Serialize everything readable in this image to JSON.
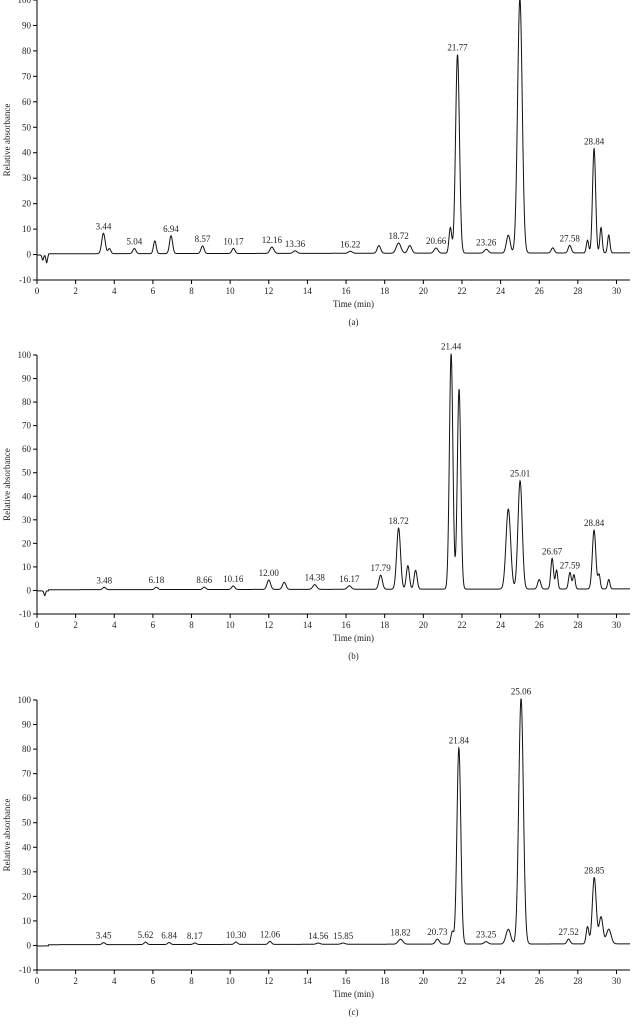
{
  "chart_data": [
    {
      "type": "line",
      "panel_label": "(a)",
      "xlabel": "Time (min)",
      "ylabel": "Relative absorbance",
      "xlim": [
        0,
        30.7
      ],
      "ylim": [
        -10,
        100
      ],
      "x_ticks": [
        "0",
        "2",
        "4",
        "6",
        "8",
        "10",
        "12",
        "14",
        "16",
        "18",
        "20",
        "22",
        "24",
        "26",
        "28",
        "30"
      ],
      "y_ticks": [
        "-10",
        "0",
        "10",
        "20",
        "30",
        "40",
        "50",
        "60",
        "70",
        "80",
        "90",
        "100"
      ],
      "peak_labels": [
        "3.44",
        "5.04",
        "6.94",
        "8.57",
        "10.17",
        "12.16",
        "13.36",
        "16.22",
        "18.72",
        "20.66",
        "21.77",
        "23.26",
        "27.58",
        "28.84"
      ],
      "peaks": [
        {
          "t": 0.3,
          "h": -2,
          "w": 0.04
        },
        {
          "t": 0.5,
          "h": -3,
          "w": 0.04
        },
        {
          "t": 3.44,
          "h": 8,
          "w": 0.09
        },
        {
          "t": 3.75,
          "h": 2,
          "w": 0.07
        },
        {
          "t": 5.04,
          "h": 2,
          "w": 0.08
        },
        {
          "t": 6.1,
          "h": 5,
          "w": 0.07
        },
        {
          "t": 6.94,
          "h": 7,
          "w": 0.08
        },
        {
          "t": 8.57,
          "h": 3,
          "w": 0.08
        },
        {
          "t": 10.17,
          "h": 2,
          "w": 0.08
        },
        {
          "t": 12.16,
          "h": 2.5,
          "w": 0.1
        },
        {
          "t": 13.36,
          "h": 1,
          "w": 0.1
        },
        {
          "t": 16.22,
          "h": 0.8,
          "w": 0.1
        },
        {
          "t": 17.7,
          "h": 3,
          "w": 0.09
        },
        {
          "t": 18.72,
          "h": 4,
          "w": 0.12
        },
        {
          "t": 19.3,
          "h": 3,
          "w": 0.1
        },
        {
          "t": 20.66,
          "h": 2,
          "w": 0.1
        },
        {
          "t": 21.4,
          "h": 10,
          "w": 0.07
        },
        {
          "t": 21.77,
          "h": 78,
          "w": 0.1
        },
        {
          "t": 23.26,
          "h": 1.5,
          "w": 0.1
        },
        {
          "t": 24.4,
          "h": 7,
          "w": 0.1
        },
        {
          "t": 25.0,
          "h": 100,
          "w": 0.12
        },
        {
          "t": 26.7,
          "h": 2,
          "w": 0.08
        },
        {
          "t": 27.58,
          "h": 3,
          "w": 0.08
        },
        {
          "t": 28.5,
          "h": 5,
          "w": 0.06
        },
        {
          "t": 28.84,
          "h": 41,
          "w": 0.08
        },
        {
          "t": 29.2,
          "h": 10,
          "w": 0.06
        },
        {
          "t": 29.6,
          "h": 7,
          "w": 0.06
        }
      ]
    },
    {
      "type": "line",
      "panel_label": "(b)",
      "xlabel": "Time (min)",
      "ylabel": "Relative absorbance",
      "xlim": [
        0,
        30.7
      ],
      "ylim": [
        -10,
        100
      ],
      "x_ticks": [
        "0",
        "2",
        "4",
        "6",
        "8",
        "10",
        "12",
        "14",
        "16",
        "18",
        "20",
        "22",
        "24",
        "26",
        "28",
        "30"
      ],
      "y_ticks": [
        "-10",
        "0",
        "10",
        "20",
        "30",
        "40",
        "50",
        "60",
        "70",
        "80",
        "90",
        "100"
      ],
      "peak_labels": [
        "3.48",
        "6.18",
        "8.66",
        "10.16",
        "12.00",
        "14.38",
        "16.17",
        "17.79",
        "18.72",
        "21.44",
        "25.01",
        "26.67",
        "27.59",
        "28.84"
      ],
      "peaks": [
        {
          "t": 0.4,
          "h": -2,
          "w": 0.04
        },
        {
          "t": 3.48,
          "h": 1,
          "w": 0.08
        },
        {
          "t": 6.18,
          "h": 1,
          "w": 0.08
        },
        {
          "t": 8.66,
          "h": 1,
          "w": 0.08
        },
        {
          "t": 10.16,
          "h": 1.5,
          "w": 0.08
        },
        {
          "t": 12.0,
          "h": 4,
          "w": 0.09
        },
        {
          "t": 12.8,
          "h": 3,
          "w": 0.09
        },
        {
          "t": 14.38,
          "h": 2,
          "w": 0.1
        },
        {
          "t": 16.17,
          "h": 1.5,
          "w": 0.1
        },
        {
          "t": 17.79,
          "h": 6,
          "w": 0.09
        },
        {
          "t": 18.72,
          "h": 26,
          "w": 0.1
        },
        {
          "t": 19.2,
          "h": 10,
          "w": 0.08
        },
        {
          "t": 19.6,
          "h": 8,
          "w": 0.08
        },
        {
          "t": 21.44,
          "h": 100,
          "w": 0.09
        },
        {
          "t": 21.85,
          "h": 85,
          "w": 0.09
        },
        {
          "t": 24.4,
          "h": 34,
          "w": 0.12
        },
        {
          "t": 25.01,
          "h": 46,
          "w": 0.11
        },
        {
          "t": 26.0,
          "h": 4,
          "w": 0.08
        },
        {
          "t": 26.67,
          "h": 13,
          "w": 0.07
        },
        {
          "t": 26.9,
          "h": 8,
          "w": 0.06
        },
        {
          "t": 27.59,
          "h": 7,
          "w": 0.07
        },
        {
          "t": 27.8,
          "h": 6,
          "w": 0.06
        },
        {
          "t": 28.84,
          "h": 25,
          "w": 0.09
        },
        {
          "t": 29.1,
          "h": 6,
          "w": 0.06
        },
        {
          "t": 29.6,
          "h": 4,
          "w": 0.06
        }
      ]
    },
    {
      "type": "line",
      "panel_label": "(c)",
      "xlabel": "Time (min)",
      "ylabel": "Relative absorbance",
      "xlim": [
        0,
        30.7
      ],
      "ylim": [
        -10,
        100
      ],
      "x_ticks": [
        "0",
        "2",
        "4",
        "6",
        "8",
        "10",
        "12",
        "14",
        "16",
        "18",
        "20",
        "22",
        "24",
        "26",
        "28",
        "30"
      ],
      "y_ticks": [
        "-10",
        "0",
        "10",
        "20",
        "30",
        "40",
        "50",
        "60",
        "70",
        "80",
        "90",
        "100"
      ],
      "peak_labels": [
        "3.45",
        "5.62",
        "6.84",
        "8.17",
        "10.30",
        "12.06",
        "14.56",
        "15.85",
        "18.82",
        "20.73",
        "21.84",
        "23.25",
        "25.06",
        "27.52",
        "28.85"
      ],
      "peaks": [
        {
          "t": 3.45,
          "h": 0.8,
          "w": 0.08
        },
        {
          "t": 5.62,
          "h": 1,
          "w": 0.08
        },
        {
          "t": 6.84,
          "h": 0.8,
          "w": 0.08
        },
        {
          "t": 8.17,
          "h": 0.6,
          "w": 0.08
        },
        {
          "t": 10.3,
          "h": 1,
          "w": 0.08
        },
        {
          "t": 12.06,
          "h": 1.2,
          "w": 0.08
        },
        {
          "t": 14.56,
          "h": 0.5,
          "w": 0.1
        },
        {
          "t": 15.85,
          "h": 0.5,
          "w": 0.1
        },
        {
          "t": 18.82,
          "h": 2,
          "w": 0.12
        },
        {
          "t": 20.73,
          "h": 2,
          "w": 0.1
        },
        {
          "t": 21.5,
          "h": 5,
          "w": 0.07
        },
        {
          "t": 21.84,
          "h": 80,
          "w": 0.1
        },
        {
          "t": 23.25,
          "h": 1,
          "w": 0.1
        },
        {
          "t": 24.4,
          "h": 6,
          "w": 0.12
        },
        {
          "t": 25.06,
          "h": 100,
          "w": 0.12
        },
        {
          "t": 27.52,
          "h": 2,
          "w": 0.08
        },
        {
          "t": 28.5,
          "h": 7,
          "w": 0.07
        },
        {
          "t": 28.85,
          "h": 27,
          "w": 0.1
        },
        {
          "t": 29.2,
          "h": 11,
          "w": 0.1
        },
        {
          "t": 29.6,
          "h": 6,
          "w": 0.12
        }
      ]
    }
  ]
}
